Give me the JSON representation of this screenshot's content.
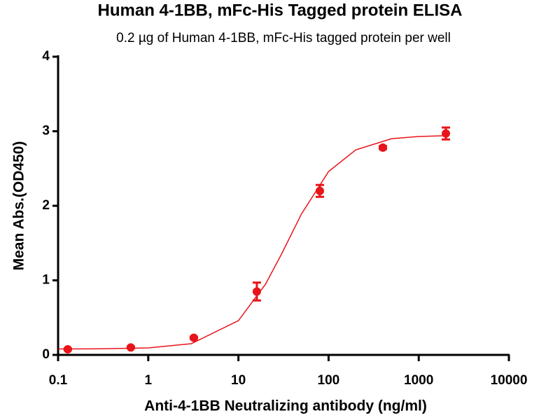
{
  "chart_data": {
    "type": "scatter",
    "title": "Human 4-1BB, mFc-His Tagged protein ELISA",
    "subtitle": "0.2 µg of Human 4-1BB, mFc-His tagged protein per well",
    "x_label": "Anti-4-1BB Neutralizing antibody (ng/ml)",
    "y_label": "Mean Abs.(OD450)",
    "xscale": "log",
    "xlim": [
      0.1,
      10000
    ],
    "ylim": [
      0,
      4
    ],
    "xticks": [
      0.1,
      1,
      10,
      100,
      1000,
      10000
    ],
    "yticks": [
      0,
      1,
      2,
      3,
      4
    ],
    "grid": false,
    "points": {
      "color": "#e8141a",
      "x": [
        0.128,
        0.64,
        3.2,
        16,
        80,
        400,
        2000
      ],
      "values": [
        0.075,
        0.1,
        0.23,
        0.85,
        2.2,
        2.78,
        2.97
      ],
      "errors": [
        0.01,
        0.01,
        0.01,
        0.12,
        0.08,
        0.02,
        0.08
      ]
    },
    "fit": {
      "color": "#e8141a",
      "x": [
        0.1,
        0.3,
        1,
        3,
        10,
        20,
        30,
        50,
        100,
        200,
        500,
        1000,
        2000
      ],
      "values": [
        0.08,
        0.082,
        0.094,
        0.15,
        0.46,
        0.95,
        1.35,
        1.89,
        2.46,
        2.75,
        2.9,
        2.93,
        2.94
      ]
    }
  }
}
